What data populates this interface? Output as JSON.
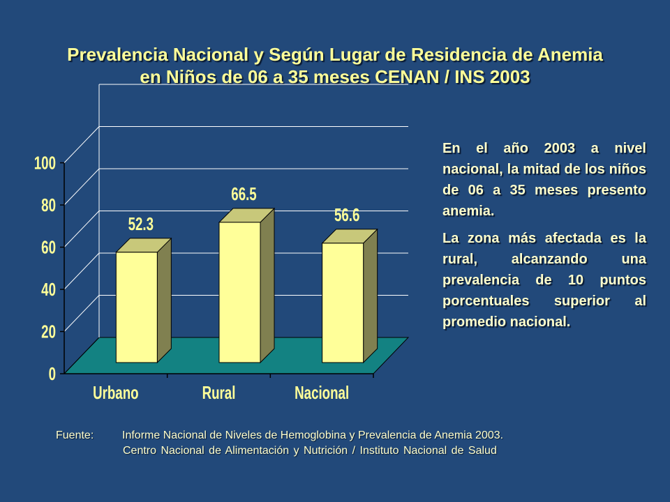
{
  "title": {
    "line1": "Prevalencia Nacional y Según Lugar de Residencia de Anemia",
    "line2": "en Niños de 06 a 35 meses CENAN / INS 2003"
  },
  "chart_data": {
    "type": "bar",
    "categories": [
      "Urbano",
      "Rural",
      "Nacional"
    ],
    "values": [
      52.3,
      66.5,
      56.6
    ],
    "value_labels": [
      "52.3",
      "66.5",
      "56.6"
    ],
    "y_ticks": [
      "0",
      "20",
      "40",
      "60",
      "80",
      "100"
    ],
    "ylim": [
      0,
      120
    ],
    "grid": true,
    "style": "3d-bar",
    "colors": {
      "bar_front": "#ffff99",
      "bar_top": "#c8c87a",
      "bar_side": "#808050",
      "floor": "#138282",
      "grid": "#ffffff",
      "text": "#ffff99"
    }
  },
  "notes": {
    "p1": "En el año 2003 a nivel nacional, la mitad de los niños de 06 a 35 meses presento anemia.",
    "p2": "La zona más afectada es la rural, alcanzando una prevalencia de 10 puntos porcentuales superior al promedio nacional."
  },
  "source": {
    "label": "Fuente:",
    "line1": "Informe Nacional de Niveles de Hemoglobina y Prevalencia de Anemia 2003.",
    "line2": "Centro Nacional de Alimentación y Nutrición / Instituto Nacional de Salud"
  }
}
